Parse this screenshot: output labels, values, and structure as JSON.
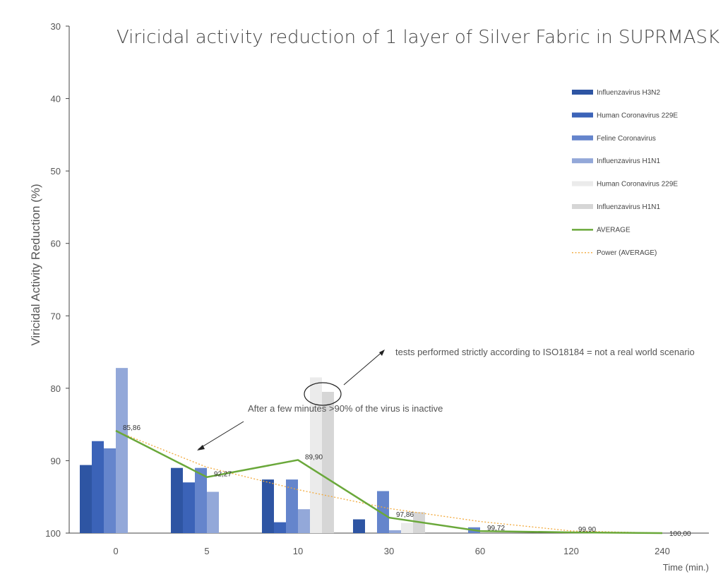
{
  "chart_data": {
    "type": "bar",
    "title": "Viricidal activity reduction of  1 layer of Silver Fabric in SUPRMASK",
    "xlabel": "Time (min.)",
    "ylabel": "Viricidal Activity Reduction (%)",
    "categories": [
      "0",
      "5",
      "10",
      "30",
      "60",
      "120",
      "240"
    ],
    "ylim": [
      100,
      30
    ],
    "y_inverted": true,
    "yticks": [
      30,
      40,
      50,
      60,
      70,
      80,
      90,
      100
    ],
    "legend_position": "right",
    "series": [
      {
        "name": "Influenzavirus H3N2",
        "color": "#2e55a3",
        "values": [
          90.6,
          91.0,
          92.6,
          98.1,
          null,
          null,
          null
        ]
      },
      {
        "name": "Human Coronavirus 229E",
        "color": "#3b63b8",
        "values": [
          87.3,
          93.0,
          98.5,
          null,
          null,
          null,
          null
        ]
      },
      {
        "name": "Feline Coronavirus",
        "color": "#6585cc",
        "values": [
          88.3,
          91.0,
          92.6,
          94.2,
          99.2,
          null,
          null
        ]
      },
      {
        "name": "Influenzavirus H1N1",
        "color": "#93a8d9",
        "values": [
          77.2,
          94.3,
          96.7,
          99.6,
          null,
          null,
          null
        ]
      },
      {
        "name": "Human Coronavirus 229E",
        "color": "#ebebeb",
        "values": [
          null,
          null,
          78.5,
          98.6,
          null,
          null,
          null
        ]
      },
      {
        "name": "Influenzavirus H1N1",
        "color": "#d6d6d6",
        "values": [
          null,
          null,
          80.5,
          97.1,
          null,
          null,
          null
        ]
      }
    ],
    "average": {
      "name": "AVERAGE",
      "color": "#6aa83a",
      "values": [
        85.86,
        92.27,
        89.9,
        97.86,
        99.72,
        99.9,
        100.0
      ],
      "labels": [
        "85,86",
        "92,27",
        "89,90",
        "97,86",
        "99,72",
        "99,90",
        "100,00"
      ]
    },
    "trend": {
      "name": "Power (AVERAGE)",
      "color": "#f2a93b",
      "values": [
        85.9,
        90.9,
        94.0,
        96.6,
        98.4,
        99.7,
        100.0
      ]
    },
    "annotations": [
      "After a few minutes >90% of the virus is inactive",
      "tests performed strictly according to ISO18184 = not a real world scenario"
    ]
  }
}
